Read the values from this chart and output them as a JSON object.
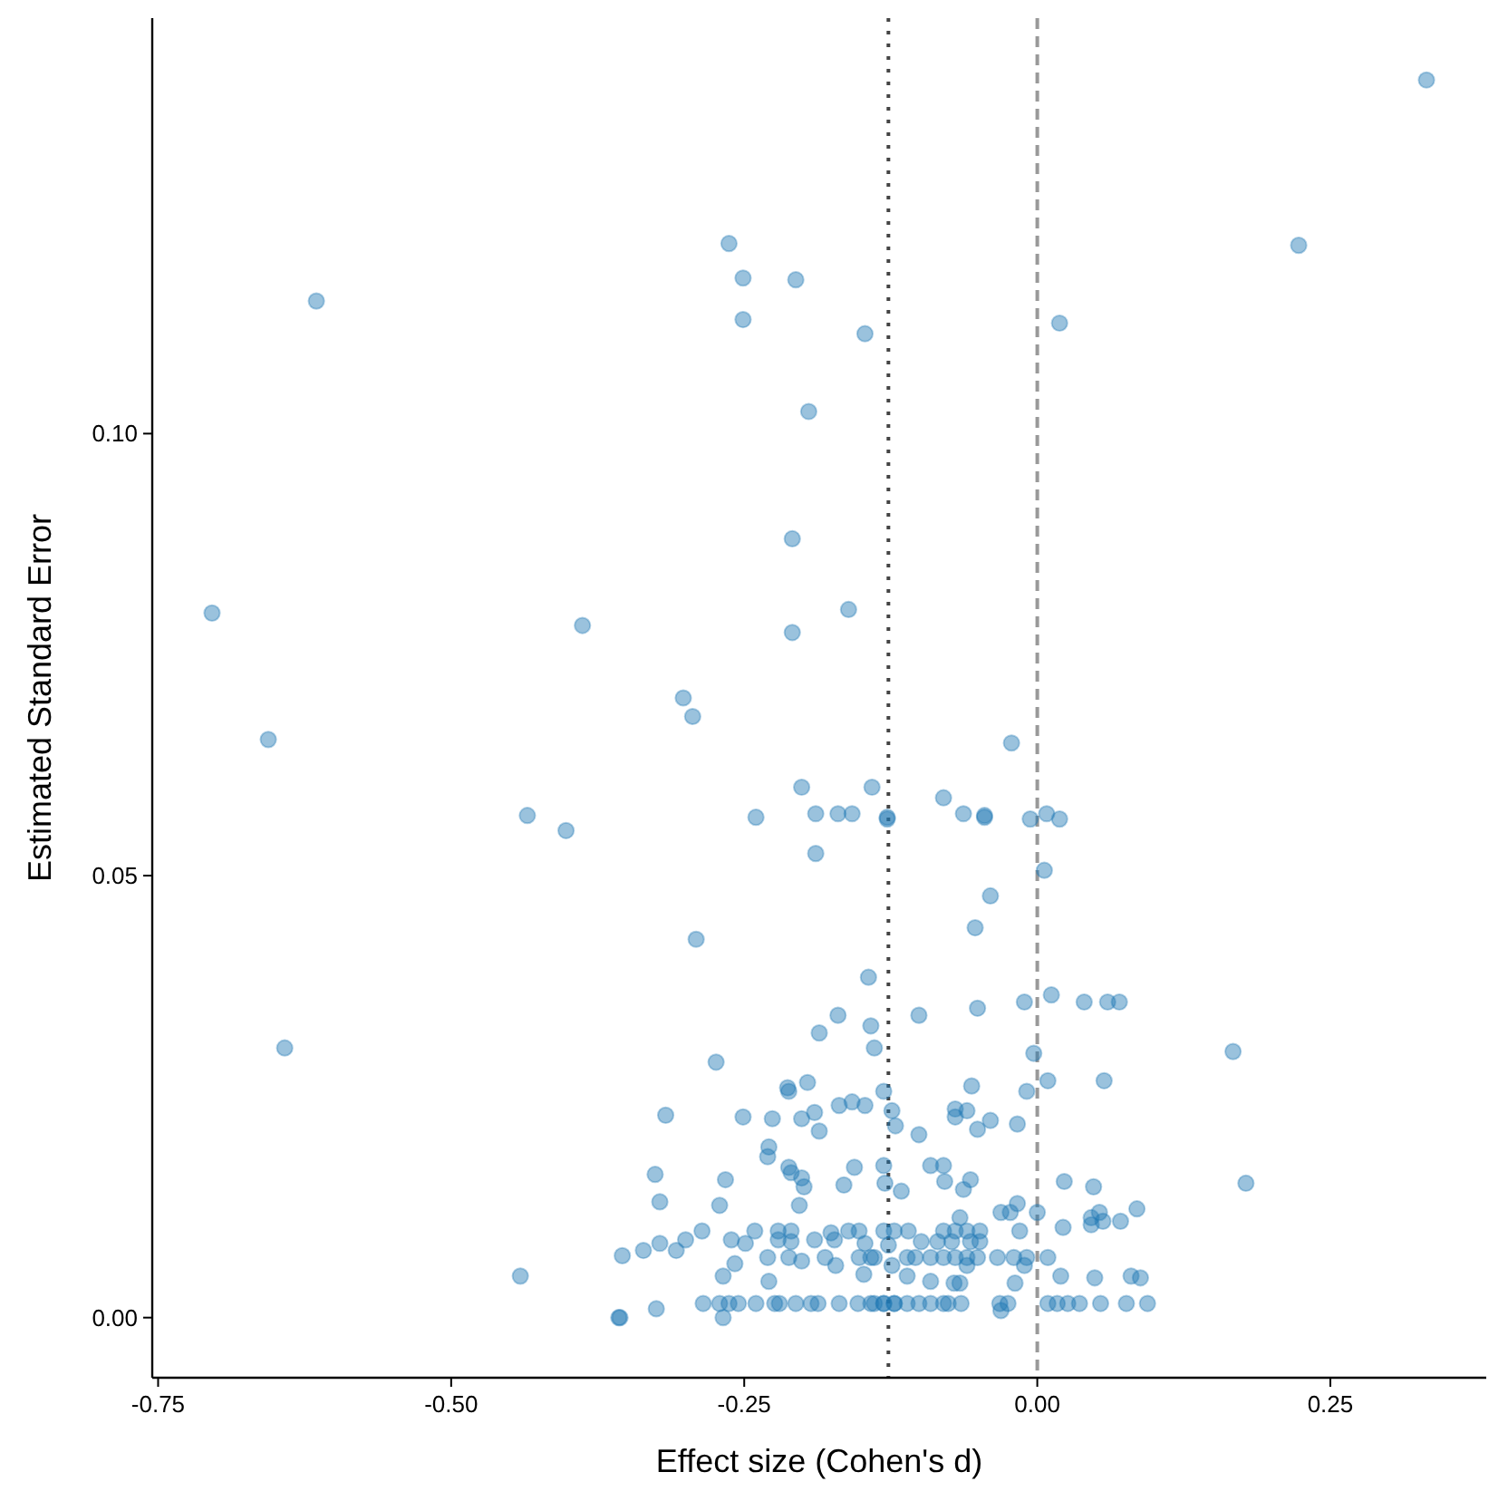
{
  "chart_data": {
    "type": "scatter",
    "xlabel": "Effect size (Cohen's d)",
    "ylabel": "Estimated Standard Error",
    "xlim": [
      -0.755,
      0.383
    ],
    "ylim": [
      -0.0068,
      0.147
    ],
    "xticks": [
      -0.75,
      {
        "value": -0.5,
        "label": "-0.50"
      },
      -0.25,
      {
        "value": 0,
        "label": "0.00"
      },
      0.25
    ],
    "yticks": [
      {
        "value": 0,
        "label": "0.00"
      },
      0.05,
      {
        "value": 0.1,
        "label": "0.10"
      }
    ],
    "grid": false,
    "marker": "circle",
    "ref_lines": [
      {
        "axis": "x",
        "value": -0.127,
        "color": "#444444",
        "line_style": "dotted"
      },
      {
        "axis": "x",
        "value": 0,
        "color": "#999999",
        "line_style": "dashed"
      }
    ],
    "series": [
      {
        "color": "#1f77b4",
        "x": [
          0.332,
          -0.263,
          -0.251,
          -0.206,
          -0.251,
          -0.615,
          -0.147,
          0.019,
          0.223,
          -0.195,
          -0.209,
          -0.704,
          -0.388,
          -0.161,
          -0.209,
          -0.302,
          -0.294,
          -0.656,
          -0.022,
          -0.201,
          -0.141,
          -0.08,
          -0.24,
          -0.189,
          -0.17,
          -0.158,
          -0.128,
          -0.128,
          -0.063,
          -0.045,
          -0.045,
          -0.006,
          0.008,
          0.019,
          -0.189,
          0.006,
          -0.04,
          -0.053,
          -0.291,
          -0.144,
          -0.17,
          -0.142,
          -0.186,
          -0.101,
          -0.051,
          -0.011,
          0.012,
          0.04,
          0.06,
          0.07,
          -0.435,
          -0.402,
          -0.642,
          -0.441,
          -0.357,
          0.167,
          0.178,
          -0.139,
          -0.274,
          -0.213,
          -0.212,
          -0.196,
          -0.131,
          -0.317,
          -0.251,
          -0.226,
          -0.201,
          -0.19,
          -0.186,
          -0.169,
          -0.158,
          -0.147,
          -0.124,
          -0.121,
          -0.229,
          -0.23,
          -0.326,
          -0.266,
          -0.212,
          -0.21,
          -0.201,
          -0.199,
          -0.165,
          -0.156,
          -0.131,
          -0.13,
          -0.322,
          -0.271,
          -0.203,
          -0.286,
          -0.241,
          -0.221,
          -0.21,
          -0.176,
          -0.161,
          -0.152,
          -0.131,
          -0.354,
          -0.336,
          -0.322,
          -0.308,
          -0.3,
          -0.261,
          -0.249,
          -0.221,
          -0.21,
          -0.19,
          -0.173,
          -0.147,
          -0.127,
          -0.258,
          -0.23,
          -0.212,
          -0.201,
          -0.181,
          -0.172,
          -0.152,
          -0.139,
          -0.124,
          -0.268,
          -0.229,
          -0.148,
          -0.285,
          -0.271,
          -0.263,
          -0.255,
          -0.24,
          -0.224,
          -0.22,
          -0.206,
          -0.193,
          -0.187,
          -0.169,
          -0.153,
          -0.139,
          -0.131,
          -0.122,
          -0.356,
          -0.325,
          -0.268,
          -0.003,
          0.009,
          0.057,
          -0.056,
          -0.009,
          -0.07,
          -0.07,
          -0.06,
          -0.04,
          -0.051,
          -0.017,
          -0.101,
          -0.091,
          -0.08,
          -0.079,
          -0.057,
          -0.063,
          -0.116,
          0.023,
          0.048,
          -0.031,
          -0.023,
          -0.017,
          0,
          -0.066,
          -0.015,
          0.022,
          0.046,
          0.053,
          0.056,
          0.071,
          0.085,
          0.046,
          -0.122,
          -0.11,
          -0.08,
          -0.07,
          -0.06,
          -0.049,
          -0.099,
          -0.085,
          -0.073,
          -0.057,
          -0.049,
          -0.142,
          -0.111,
          -0.104,
          -0.091,
          -0.08,
          -0.07,
          -0.06,
          -0.051,
          -0.034,
          -0.02,
          -0.009,
          0.009,
          -0.06,
          -0.011,
          -0.111,
          -0.091,
          -0.071,
          -0.066,
          -0.019,
          0.02,
          0.049,
          0.08,
          0.088,
          -0.142,
          -0.131,
          -0.122,
          -0.111,
          -0.101,
          -0.091,
          -0.08,
          -0.076,
          -0.065,
          -0.032,
          -0.025,
          0.009,
          0.017,
          0.026,
          0.036,
          0.054,
          0.076,
          0.094,
          -0.031
        ],
        "values": [
          0.14,
          0.1215,
          0.1176,
          0.1174,
          0.1129,
          0.115,
          0.1113,
          0.1125,
          0.1213,
          0.1025,
          0.0881,
          0.0797,
          0.0783,
          0.0801,
          0.0775,
          0.0701,
          0.068,
          0.0654,
          0.065,
          0.06,
          0.06,
          0.0588,
          0.0566,
          0.057,
          0.057,
          0.057,
          0.0564,
          0.0566,
          0.057,
          0.0568,
          0.0566,
          0.0564,
          0.057,
          0.0564,
          0.0525,
          0.0506,
          0.0477,
          0.0441,
          0.0428,
          0.0385,
          0.0342,
          0.033,
          0.0322,
          0.0342,
          0.035,
          0.0357,
          0.0365,
          0.0357,
          0.0357,
          0.0357,
          0.0568,
          0.0551,
          0.0305,
          0.0047,
          0.0,
          0.0301,
          0.0152,
          0.0305,
          0.0289,
          0.026,
          0.0256,
          0.0266,
          0.0256,
          0.0229,
          0.0227,
          0.0225,
          0.0225,
          0.0232,
          0.0211,
          0.024,
          0.0244,
          0.024,
          0.0234,
          0.0217,
          0.0193,
          0.0182,
          0.0162,
          0.0156,
          0.017,
          0.0164,
          0.0158,
          0.0148,
          0.015,
          0.017,
          0.0172,
          0.0152,
          0.0131,
          0.0127,
          0.0127,
          0.0098,
          0.0098,
          0.0098,
          0.0098,
          0.0096,
          0.0098,
          0.0098,
          0.0098,
          0.007,
          0.0076,
          0.0084,
          0.0076,
          0.0088,
          0.0088,
          0.0084,
          0.0088,
          0.0086,
          0.0088,
          0.0088,
          0.0084,
          0.0082,
          0.0061,
          0.0068,
          0.0068,
          0.0064,
          0.0068,
          0.0059,
          0.0068,
          0.0068,
          0.0059,
          0.0047,
          0.0041,
          0.0049,
          0.0016,
          0.0016,
          0.0016,
          0.0016,
          0.0016,
          0.0016,
          0.0016,
          0.0016,
          0.0016,
          0.0016,
          0.0016,
          0.0016,
          0.0016,
          0.0016,
          0.0016,
          0.0,
          0.001,
          0.0,
          0.0299,
          0.0268,
          0.0268,
          0.0262,
          0.0256,
          0.0236,
          0.0227,
          0.0234,
          0.0223,
          0.0213,
          0.0219,
          0.0207,
          0.0172,
          0.0172,
          0.0154,
          0.0156,
          0.0145,
          0.0143,
          0.0154,
          0.0148,
          0.0119,
          0.0119,
          0.0129,
          0.0119,
          0.0113,
          0.0098,
          0.0102,
          0.0113,
          0.0119,
          0.0109,
          0.0109,
          0.0123,
          0.0105,
          0.0098,
          0.0098,
          0.0098,
          0.0098,
          0.0098,
          0.0098,
          0.0086,
          0.0086,
          0.0086,
          0.0086,
          0.0086,
          0.0068,
          0.0068,
          0.0068,
          0.0068,
          0.0068,
          0.0068,
          0.0068,
          0.0068,
          0.0068,
          0.0068,
          0.0068,
          0.0068,
          0.0059,
          0.0059,
          0.0047,
          0.0041,
          0.0039,
          0.0039,
          0.0039,
          0.0047,
          0.0045,
          0.0047,
          0.0045,
          0.0016,
          0.0016,
          0.0016,
          0.0016,
          0.0016,
          0.0016,
          0.0016,
          0.0016,
          0.0016,
          0.0016,
          0.0016,
          0.0016,
          0.0016,
          0.0016,
          0.0016,
          0.0016,
          0.0016,
          0.0016,
          0.0008
        ]
      }
    ]
  }
}
